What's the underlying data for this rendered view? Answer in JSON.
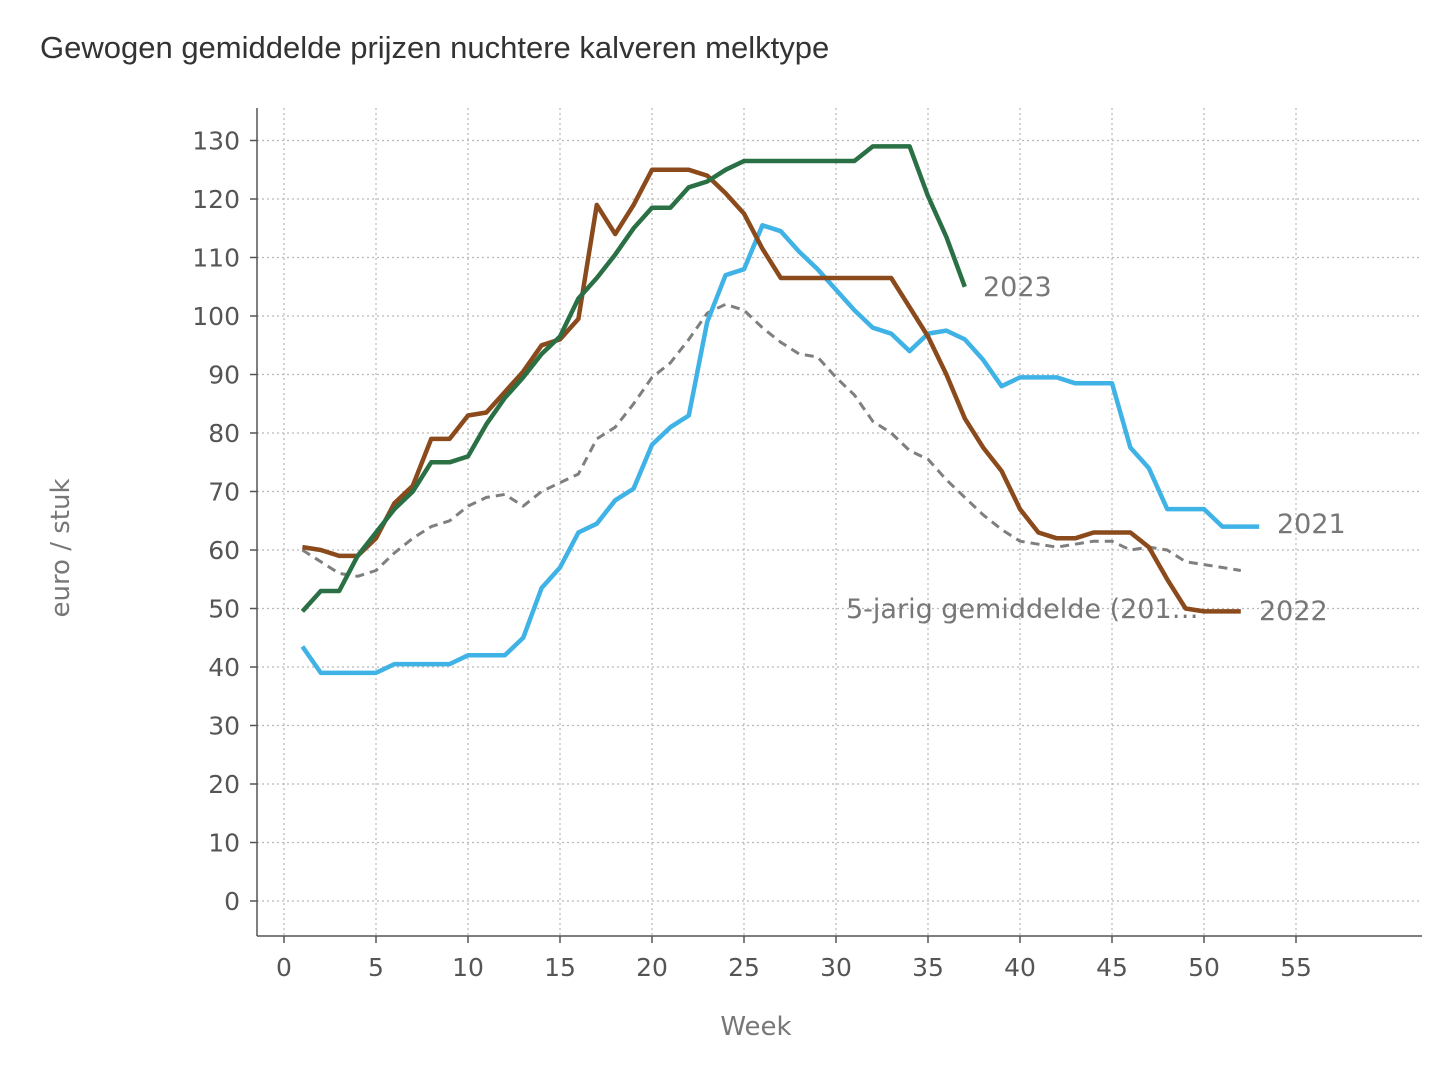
{
  "chart_data": {
    "type": "line",
    "title": "Gewogen gemiddelde prijzen nuchtere kalveren melktype",
    "xlabel": "Week",
    "ylabel": "euro / stuk",
    "xlim": [
      0,
      62
    ],
    "ylim": [
      -6,
      136
    ],
    "x_ticks": [
      0,
      5,
      10,
      15,
      20,
      25,
      30,
      35,
      40,
      45,
      50,
      55
    ],
    "y_ticks": [
      0,
      10,
      20,
      30,
      40,
      50,
      60,
      70,
      80,
      90,
      100,
      110,
      120,
      130
    ],
    "grid": true,
    "legend": "none",
    "series": [
      {
        "name": "5-jarig gemiddelde (201…",
        "color": "#7f7f7f",
        "dashed": true,
        "x": [
          1,
          2,
          3,
          4,
          5,
          6,
          7,
          8,
          9,
          10,
          11,
          12,
          13,
          14,
          15,
          16,
          17,
          18,
          19,
          20,
          21,
          22,
          23,
          24,
          25,
          26,
          27,
          28,
          29,
          30,
          31,
          32,
          33,
          34,
          35,
          36,
          37,
          38,
          39,
          40,
          41,
          42,
          43,
          44,
          45,
          46,
          47,
          48,
          49,
          50,
          51,
          52
        ],
        "y": [
          60,
          58,
          56,
          55.5,
          56.5,
          59.5,
          62,
          64,
          65,
          67.5,
          69,
          69.5,
          67.5,
          70,
          71.5,
          73,
          79,
          81,
          85,
          89.5,
          92,
          96,
          100.5,
          102,
          101,
          98,
          95.5,
          93.5,
          93,
          89.5,
          86.5,
          82,
          80,
          77,
          75.5,
          72,
          69,
          66,
          63.5,
          61.5,
          61,
          60.5,
          61,
          61.5,
          61.5,
          60,
          60.5,
          60,
          58,
          57.5,
          57,
          56.5
        ]
      },
      {
        "name": "2021",
        "color": "#3fb2e6",
        "dashed": false,
        "x": [
          1,
          2,
          3,
          4,
          5,
          6,
          7,
          8,
          9,
          10,
          11,
          12,
          13,
          14,
          15,
          16,
          17,
          18,
          19,
          20,
          21,
          22,
          23,
          24,
          25,
          26,
          27,
          28,
          29,
          30,
          31,
          32,
          33,
          34,
          35,
          36,
          37,
          38,
          39,
          40,
          41,
          42,
          43,
          44,
          45,
          46,
          47,
          48,
          49,
          50,
          51,
          52,
          53
        ],
        "y": [
          43.5,
          39,
          39,
          39,
          39,
          40.5,
          40.5,
          40.5,
          40.5,
          42,
          42,
          42,
          45,
          53.5,
          57,
          63,
          64.5,
          68.5,
          70.5,
          78,
          81,
          83,
          99,
          107,
          108,
          115.5,
          114.5,
          111,
          108,
          104.5,
          101,
          98,
          97,
          94,
          97,
          97.5,
          96,
          92.5,
          88,
          89.5,
          89.5,
          89.5,
          88.5,
          88.5,
          88.5,
          77.5,
          74,
          67,
          67,
          67,
          64,
          64,
          64
        ]
      },
      {
        "name": "2022",
        "color": "#8b4a1c",
        "dashed": false,
        "x": [
          1,
          2,
          3,
          4,
          5,
          6,
          7,
          8,
          9,
          10,
          11,
          12,
          13,
          14,
          15,
          16,
          17,
          18,
          19,
          20,
          21,
          22,
          23,
          24,
          25,
          26,
          27,
          28,
          29,
          30,
          31,
          32,
          33,
          34,
          35,
          36,
          37,
          38,
          39,
          40,
          41,
          42,
          43,
          44,
          45,
          46,
          47,
          48,
          49,
          50,
          51,
          52
        ],
        "y": [
          60.5,
          60,
          59,
          59,
          62,
          68,
          71,
          79,
          79,
          83,
          83.5,
          87,
          90.5,
          95,
          96,
          99.5,
          119,
          114,
          119,
          125,
          125,
          125,
          124,
          121,
          117.5,
          111.5,
          106.5,
          106.5,
          106.5,
          106.5,
          106.5,
          106.5,
          106.5,
          101.5,
          96.5,
          90,
          82.5,
          77.5,
          73.5,
          67,
          63,
          62,
          62,
          63,
          63,
          63,
          60.5,
          55,
          50,
          49.5,
          49.5,
          49.5
        ]
      },
      {
        "name": "2023",
        "color": "#2a7044",
        "dashed": false,
        "x": [
          1,
          2,
          3,
          4,
          5,
          6,
          7,
          8,
          9,
          10,
          11,
          12,
          13,
          14,
          15,
          16,
          17,
          18,
          19,
          20,
          21,
          22,
          23,
          24,
          25,
          26,
          27,
          28,
          29,
          30,
          31,
          32,
          33,
          34,
          35,
          36,
          37
        ],
        "y": [
          49.5,
          53,
          53,
          59,
          63,
          67,
          70,
          75,
          75,
          76,
          81.5,
          86,
          89.5,
          93.5,
          96.5,
          103,
          106.5,
          110.5,
          115,
          118.5,
          118.5,
          122,
          123,
          125,
          126.5,
          126.5,
          126.5,
          126.5,
          126.5,
          126.5,
          126.5,
          129,
          129,
          129,
          120.5,
          113.5,
          105
        ]
      }
    ]
  }
}
